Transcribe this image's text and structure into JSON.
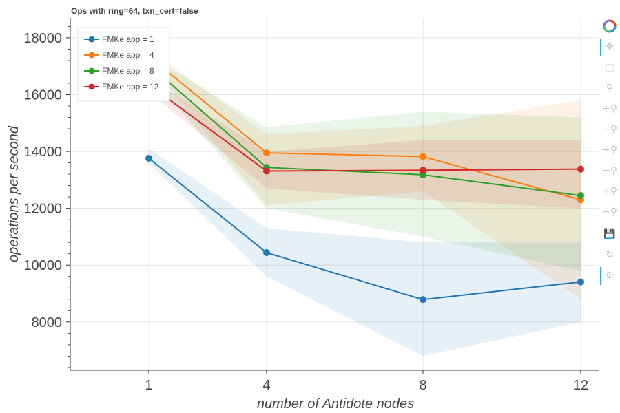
{
  "chart_data": {
    "type": "line",
    "title": "Ops with ring=64, txn_cert=false",
    "xlabel": "number of Antidote nodes",
    "ylabel": "operations per second",
    "x": [
      1,
      4,
      8,
      12
    ],
    "x_ticks": [
      "1",
      "4",
      "8",
      "12"
    ],
    "y_ticks": [
      "8000",
      "10000",
      "12000",
      "14000",
      "16000",
      "18000"
    ],
    "ylim": [
      6300,
      18700
    ],
    "grid": true,
    "legend_position": "top-left",
    "series": [
      {
        "name": "FMKe app = 1",
        "color": "#1f77b4",
        "values": [
          13760,
          10440,
          8790,
          9410
        ],
        "band_low": [
          13600,
          9600,
          6800,
          8000
        ],
        "band_high": [
          14100,
          11300,
          10800,
          10800
        ]
      },
      {
        "name": "FMKe app = 4",
        "color": "#ff7f0e",
        "values": [
          17350,
          13950,
          13820,
          12300
        ],
        "band_low": [
          17100,
          12100,
          12600,
          8800
        ],
        "band_high": [
          17600,
          14600,
          14900,
          15800
        ]
      },
      {
        "name": "FMKe app = 8",
        "color": "#2ca02c",
        "values": [
          17050,
          13440,
          13180,
          12450
        ],
        "band_low": [
          16700,
          12000,
          11000,
          9800
        ],
        "band_high": [
          17400,
          14850,
          15400,
          15200
        ]
      },
      {
        "name": "FMKe app = 12",
        "color": "#d62728",
        "values": [
          16350,
          13310,
          13340,
          13380
        ],
        "band_low": [
          16100,
          12700,
          12300,
          12000
        ],
        "band_high": [
          16600,
          14000,
          14400,
          14400
        ]
      }
    ]
  },
  "toolbar": {
    "items": [
      {
        "name": "bokeh-logo-icon",
        "label": ""
      },
      {
        "name": "pan-tool-icon",
        "label": "✥"
      },
      {
        "name": "box-select-tool-icon",
        "label": "⬚"
      },
      {
        "name": "zoom-x-tool-icon",
        "label": "⚲"
      },
      {
        "name": "zoom-in-tool-icon",
        "label": "+⚲"
      },
      {
        "name": "zoom-out-tool-icon",
        "label": "−⚲"
      },
      {
        "name": "zoom-in-x-tool-icon",
        "label": "+⚲"
      },
      {
        "name": "zoom-out-x-tool-icon",
        "label": "−⚲"
      },
      {
        "name": "zoom-in-y-tool-icon",
        "label": "+⚲"
      },
      {
        "name": "zoom-out-y-tool-icon",
        "label": "−⚲"
      },
      {
        "name": "save-tool-icon",
        "label": "💾"
      },
      {
        "name": "reset-tool-icon",
        "label": "↻"
      },
      {
        "name": "hover-tool-icon",
        "label": "⊕"
      }
    ]
  }
}
